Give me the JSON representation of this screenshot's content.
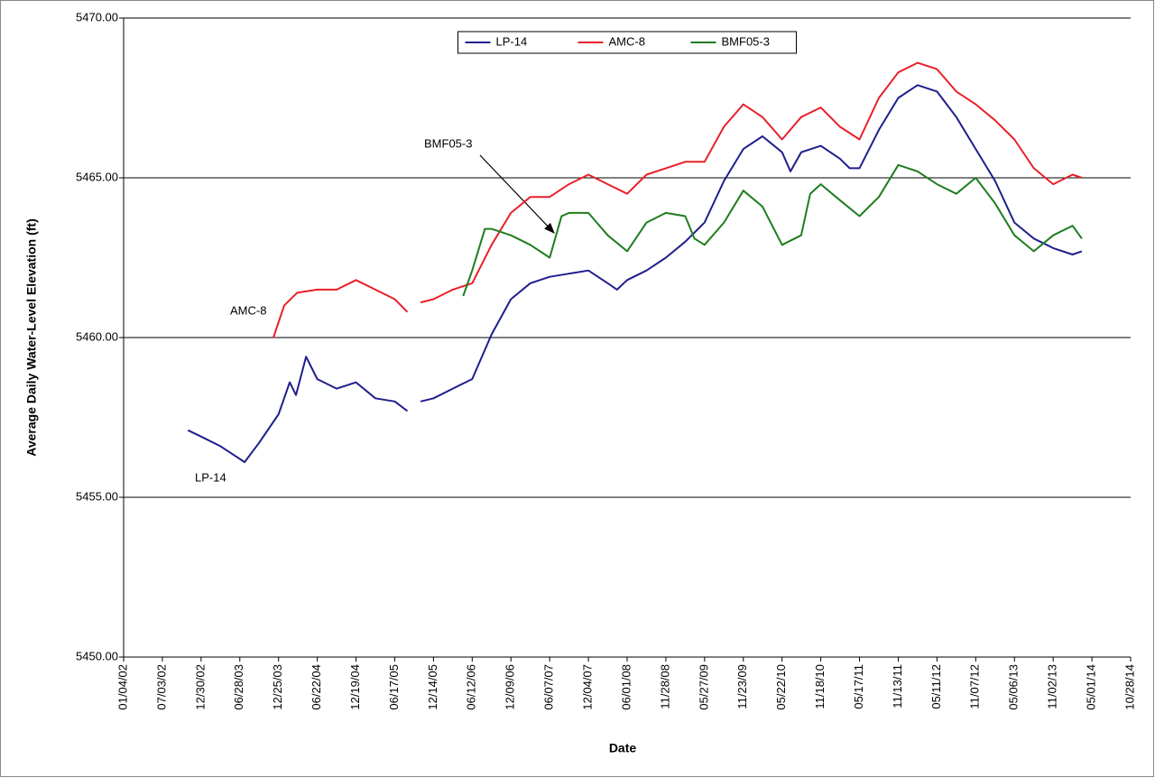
{
  "chart_data": {
    "type": "line",
    "y_label": "Average Daily Water-Level Elevation (ft)",
    "x_label": "Date",
    "legend": "top-center",
    "grid": true,
    "ylim": [
      5450,
      5470
    ],
    "yticks": [
      {
        "value": 5450,
        "label": "5450.00"
      },
      {
        "value": 5455,
        "label": "5455.00"
      },
      {
        "value": 5460,
        "label": "5460.00"
      },
      {
        "value": 5465,
        "label": "5465.00"
      },
      {
        "value": 5470,
        "label": "5470.00"
      }
    ],
    "xlim": [
      "01/04/02",
      "10/28/14"
    ],
    "xticks": [
      "01/04/02",
      "07/03/02",
      "12/30/02",
      "06/28/03",
      "12/25/03",
      "06/22/04",
      "12/19/04",
      "06/17/05",
      "12/14/05",
      "06/12/06",
      "12/09/06",
      "06/07/07",
      "12/04/07",
      "06/01/08",
      "11/28/08",
      "05/27/09",
      "11/23/09",
      "05/22/10",
      "11/18/10",
      "05/17/11",
      "11/13/11",
      "05/11/12",
      "11/07/12",
      "05/06/13",
      "11/02/13",
      "05/01/14",
      "10/28/14"
    ],
    "annotations": [
      "BMF05-3",
      "AMC-8",
      "LP-14"
    ],
    "series": [
      {
        "name": "LP-14",
        "color": "#1f1f8c",
        "x": [
          "10/30/02",
          "12/30/02",
          "03/30/03",
          "06/28/03",
          "07/20/03",
          "09/25/03",
          "12/25/03",
          "02/15/04",
          "03/15/04",
          "05/01/04",
          "06/22/04",
          "09/20/04",
          "12/19/04",
          "03/19/05",
          "06/17/05",
          "08/15/05",
          "09/15/05",
          "10/15/05",
          "12/14/05",
          "03/14/06",
          "06/12/06",
          "09/10/06",
          "12/09/06",
          "03/09/07",
          "06/07/07",
          "09/05/07",
          "12/04/07",
          "03/03/08",
          "04/15/08",
          "06/01/08",
          "08/30/08",
          "11/28/08",
          "02/26/09",
          "05/27/09",
          "08/25/09",
          "11/23/09",
          "02/20/10",
          "05/22/10",
          "06/30/10",
          "08/19/10",
          "11/18/10",
          "02/15/11",
          "04/01/11",
          "05/17/11",
          "08/15/11",
          "11/13/11",
          "02/11/12",
          "05/11/12",
          "08/09/12",
          "11/07/12",
          "02/05/13",
          "05/06/13",
          "08/04/13",
          "11/02/13",
          "01/31/14",
          "03/15/14"
        ],
        "values": [
          5457.1,
          5456.9,
          5456.6,
          5456.2,
          5456.1,
          5456.7,
          5457.6,
          5458.6,
          5458.2,
          5459.4,
          5458.7,
          5458.4,
          5458.6,
          5458.1,
          5458.0,
          5457.7,
          null,
          5458.0,
          5458.1,
          5458.4,
          5458.7,
          5460.1,
          5461.2,
          5461.7,
          5461.9,
          5462.0,
          5462.1,
          5461.7,
          5461.5,
          5461.8,
          5462.1,
          5462.5,
          5463.0,
          5463.6,
          5464.9,
          5465.9,
          5466.3,
          5465.8,
          5465.2,
          5465.8,
          5466.0,
          5465.6,
          5465.3,
          5465.3,
          5466.5,
          5467.5,
          5467.9,
          5467.7,
          5466.9,
          5465.9,
          5464.9,
          5463.6,
          5463.1,
          5462.8,
          5462.6,
          5462.7
        ]
      },
      {
        "name": "AMC-8",
        "color": "#e8202a",
        "x": [
          "12/01/03",
          "01/20/04",
          "03/20/04",
          "06/22/04",
          "09/20/04",
          "12/19/04",
          "03/19/05",
          "06/17/05",
          "08/15/05",
          "09/15/05",
          "10/15/05",
          "12/14/05",
          "03/14/06",
          "06/12/06",
          "09/10/06",
          "12/09/06",
          "03/09/07",
          "06/07/07",
          "09/05/07",
          "12/04/07",
          "03/03/08",
          "06/01/08",
          "08/30/08",
          "11/28/08",
          "02/26/09",
          "05/27/09",
          "08/25/09",
          "11/23/09",
          "02/20/10",
          "05/22/10",
          "08/19/10",
          "11/18/10",
          "02/15/11",
          "05/17/11",
          "08/15/11",
          "11/13/11",
          "02/11/12",
          "05/11/12",
          "08/09/12",
          "11/07/12",
          "02/05/13",
          "05/06/13",
          "08/04/13",
          "11/02/13",
          "01/31/14",
          "03/15/14"
        ],
        "values": [
          5460.0,
          5461.0,
          5461.4,
          5461.5,
          5461.5,
          5461.8,
          5461.5,
          5461.2,
          5460.8,
          null,
          5461.1,
          5461.2,
          5461.5,
          5461.7,
          5462.9,
          5463.9,
          5464.4,
          5464.4,
          5464.8,
          5465.1,
          5464.8,
          5464.5,
          5465.1,
          5465.3,
          5465.5,
          5465.5,
          5466.6,
          5467.3,
          5466.9,
          5466.2,
          5466.9,
          5467.2,
          5466.6,
          5466.2,
          5467.5,
          5468.3,
          5468.6,
          5468.4,
          5467.7,
          5467.3,
          5466.8,
          5466.2,
          5465.3,
          5464.8,
          5465.1,
          5465.0
        ]
      },
      {
        "name": "BMF05-3",
        "color": "#1e7d1e",
        "x": [
          "05/01/06",
          "06/12/06",
          "08/10/06",
          "09/10/06",
          "12/09/06",
          "03/09/07",
          "06/07/07",
          "08/01/07",
          "09/05/07",
          "12/04/07",
          "03/03/08",
          "06/01/08",
          "08/30/08",
          "11/28/08",
          "02/26/09",
          "04/10/09",
          "05/27/09",
          "08/25/09",
          "11/23/09",
          "02/20/10",
          "05/22/10",
          "08/19/10",
          "09/30/10",
          "11/18/10",
          "02/15/11",
          "05/17/11",
          "08/15/11",
          "11/13/11",
          "02/11/12",
          "05/11/12",
          "08/09/12",
          "11/07/12",
          "02/05/13",
          "05/06/13",
          "08/04/13",
          "11/02/13",
          "01/31/14",
          "03/15/14"
        ],
        "values": [
          5461.3,
          5462.1,
          5463.4,
          5463.4,
          5463.2,
          5462.9,
          5462.5,
          5463.8,
          5463.9,
          5463.9,
          5463.2,
          5462.7,
          5463.6,
          5463.9,
          5463.8,
          5463.1,
          5462.9,
          5463.6,
          5464.6,
          5464.1,
          5462.9,
          5463.2,
          5464.5,
          5464.8,
          5464.3,
          5463.8,
          5464.4,
          5465.4,
          5465.2,
          5464.8,
          5464.5,
          5465.0,
          5464.2,
          5463.2,
          5462.7,
          5463.2,
          5463.5,
          5463.1
        ]
      }
    ]
  }
}
